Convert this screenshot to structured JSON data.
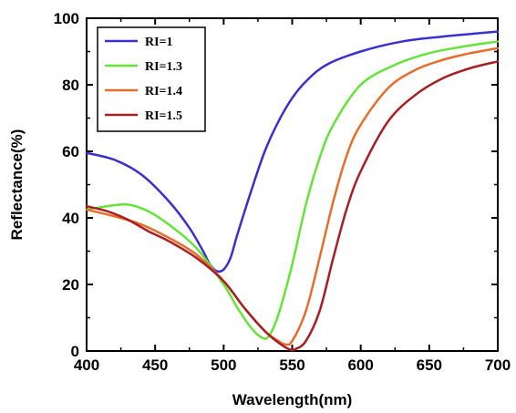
{
  "chart_data": {
    "type": "line",
    "xlabel": "Wavelength(nm)",
    "ylabel": "Reflectance(%)",
    "xlim": [
      400,
      700
    ],
    "ylim": [
      0,
      100
    ],
    "xticks": [
      400,
      450,
      500,
      550,
      600,
      650,
      700
    ],
    "yticks": [
      0,
      20,
      40,
      60,
      80,
      100
    ],
    "grid": false,
    "legend_position": "top-left",
    "series": [
      {
        "name": "RI=1",
        "color": "#3b2fd0",
        "x": [
          400,
          420,
          440,
          460,
          475,
          485,
          490,
          495,
          500,
          505,
          510,
          520,
          530,
          540,
          550,
          560,
          575,
          600,
          630,
          660,
          700
        ],
        "y": [
          59.5,
          57.5,
          53,
          45,
          37,
          30,
          26,
          24,
          24.5,
          28,
          35,
          48,
          60,
          69,
          76,
          81,
          86,
          90,
          93,
          94.5,
          96
        ]
      },
      {
        "name": "RI=1.3",
        "color": "#66e33a",
        "x": [
          400,
          415,
          430,
          445,
          460,
          480,
          500,
          510,
          520,
          528,
          533,
          540,
          550,
          560,
          570,
          580,
          600,
          625,
          650,
          675,
          700
        ],
        "y": [
          42.5,
          43.5,
          44,
          42,
          38,
          31,
          20,
          13,
          7,
          4,
          4.5,
          11,
          26,
          44,
          58,
          68,
          80,
          86,
          89.5,
          91.5,
          93
        ]
      },
      {
        "name": "RI=1.4",
        "color": "#e56e2c",
        "x": [
          400,
          420,
          440,
          460,
          480,
          500,
          515,
          530,
          540,
          545,
          550,
          560,
          570,
          580,
          590,
          600,
          620,
          640,
          660,
          680,
          700
        ],
        "y": [
          42.5,
          40.5,
          38,
          34,
          29,
          21,
          13,
          6,
          3,
          2,
          3,
          12,
          28,
          45,
          59,
          68,
          79,
          84.5,
          87.5,
          89.5,
          91
        ]
      },
      {
        "name": "RI=1.5",
        "color": "#a81e22",
        "x": [
          400,
          415,
          430,
          445,
          460,
          480,
          500,
          515,
          530,
          540,
          548,
          552,
          560,
          570,
          580,
          590,
          600,
          620,
          640,
          660,
          680,
          700
        ],
        "y": [
          43.5,
          42,
          39.5,
          36,
          33,
          28,
          21,
          13,
          6,
          2.5,
          0.5,
          0.5,
          3,
          12,
          28,
          43,
          54,
          69,
          77,
          82,
          85,
          87
        ]
      }
    ]
  }
}
